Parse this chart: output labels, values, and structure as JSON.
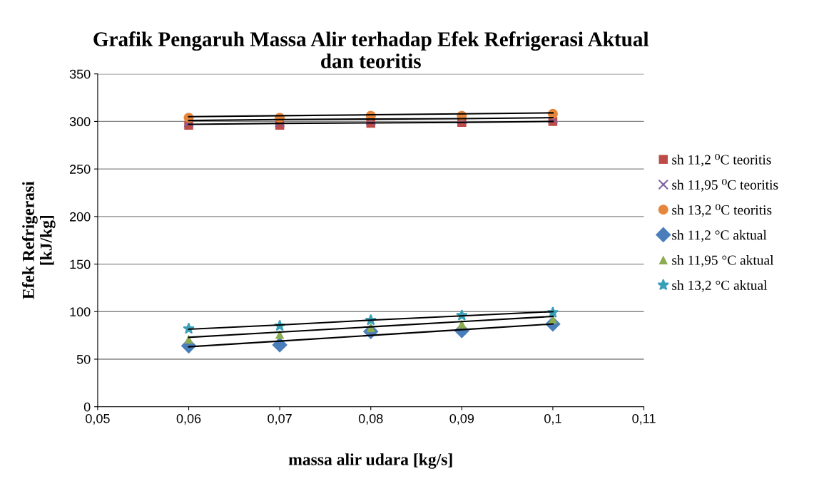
{
  "chart_data": {
    "type": "scatter",
    "title": "Grafik Pengaruh Massa Alir terhadap Efek Refrigerasi Aktual\ndan teoritis",
    "xlabel": "massa alir udara [kg/s]",
    "ylabel": "Efek Refrigerasi\n[kJ/kg]",
    "x": [
      0.06,
      0.07,
      0.08,
      0.09,
      0.1
    ],
    "xlim": [
      0.05,
      0.11
    ],
    "xticks": [
      {
        "value": 0.05,
        "label": "0,05"
      },
      {
        "value": 0.06,
        "label": "0,06"
      },
      {
        "value": 0.07,
        "label": "0,07"
      },
      {
        "value": 0.08,
        "label": "0,08"
      },
      {
        "value": 0.09,
        "label": "0,09"
      },
      {
        "value": 0.1,
        "label": "0,1"
      },
      {
        "value": 0.11,
        "label": "0,11"
      }
    ],
    "ylim": [
      0,
      350
    ],
    "yticks": [
      0,
      50,
      100,
      150,
      200,
      250,
      300,
      350
    ],
    "grid": "y",
    "legend": "right",
    "series": [
      {
        "name": "sh 11,2 ⁰C teoritis",
        "color": "#be4b48",
        "marker": "square",
        "values": [
          296,
          296,
          298,
          299,
          300
        ]
      },
      {
        "name": "sh 11,95 ⁰C teoritis",
        "color": "#7d60a0",
        "marker": "cross",
        "values": [
          299,
          299,
          301,
          302,
          303
        ]
      },
      {
        "name": "sh 13,2 ⁰C teoritis",
        "color": "#e6863c",
        "marker": "circle",
        "values": [
          304,
          304,
          306,
          306,
          308
        ]
      },
      {
        "name": "sh 11,2 °C aktual",
        "color": "#4a7ebb",
        "marker": "diamond",
        "values": [
          64,
          65,
          79,
          80,
          87
        ]
      },
      {
        "name": "sh 11,95 °C aktual",
        "color": "#8cac52",
        "marker": "triangle",
        "values": [
          71,
          76,
          83,
          87,
          92
        ]
      },
      {
        "name": "sh 13,2 °C aktual",
        "color": "#3a9fb8",
        "marker": "star",
        "values": [
          82,
          85,
          91,
          96,
          99
        ]
      },
      {
        "type": "line",
        "color": "#000000",
        "values": [
          305,
          306,
          307,
          308,
          309
        ]
      },
      {
        "type": "line",
        "color": "#000000",
        "values": [
          301,
          302,
          302.5,
          303,
          304
        ]
      },
      {
        "type": "line",
        "color": "#000000",
        "values": [
          297,
          298,
          298.5,
          299,
          300
        ]
      },
      {
        "type": "line",
        "color": "#000000",
        "values": [
          63,
          69,
          75,
          81,
          87
        ]
      },
      {
        "type": "line",
        "color": "#000000",
        "values": [
          73,
          78.5,
          84,
          89.5,
          95
        ]
      },
      {
        "type": "line",
        "color": "#000000",
        "values": [
          81.5,
          86,
          91,
          95.5,
          100
        ]
      }
    ]
  }
}
